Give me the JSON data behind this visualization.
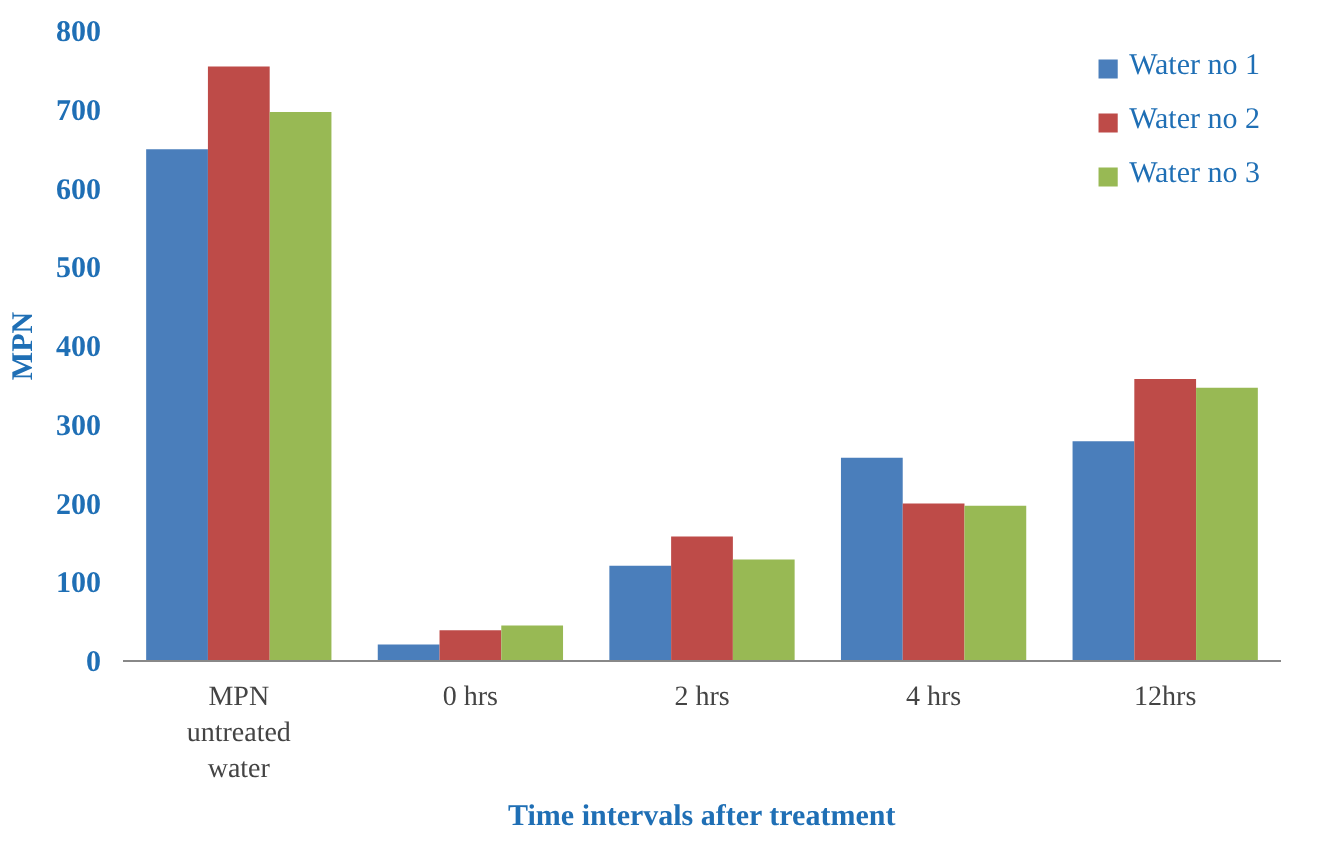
{
  "chart_data": {
    "type": "bar",
    "xlabel": "Time intervals after treatment",
    "ylabel": "MPN",
    "categories": [
      "MPN untreated water",
      "0 hrs",
      "2 hrs",
      "4 hrs",
      "12hrs"
    ],
    "series": [
      {
        "name": "Water no 1",
        "color": "#4a7ebb",
        "values": [
          650,
          21,
          121,
          258,
          279
        ]
      },
      {
        "name": "Water no 2",
        "color": "#be4b48",
        "values": [
          755,
          39,
          158,
          200,
          358
        ]
      },
      {
        "name": "Water no 3",
        "color": "#98b954",
        "values": [
          697,
          45,
          129,
          197,
          347
        ]
      }
    ],
    "ylim": [
      0,
      800
    ],
    "yticks": [
      0,
      100,
      200,
      300,
      400,
      500,
      600,
      700,
      800
    ],
    "grid": false,
    "legend": "top right"
  }
}
